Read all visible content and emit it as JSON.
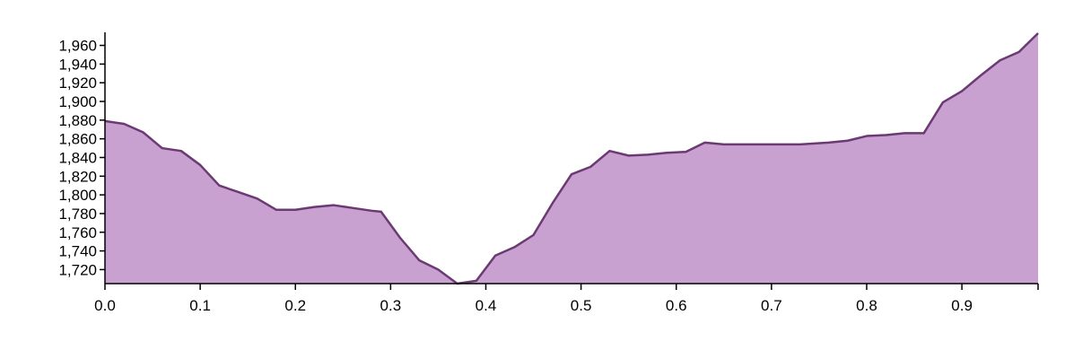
{
  "chart_data": {
    "type": "area",
    "title": "",
    "xlabel": "",
    "ylabel": "",
    "xlim": [
      0,
      0.98
    ],
    "ylim": [
      1705,
      1974
    ],
    "x_ticks": [
      0.0,
      0.1,
      0.2,
      0.3,
      0.4,
      0.5,
      0.6,
      0.7,
      0.8,
      0.9
    ],
    "x_tick_labels": [
      "0.0",
      "0.1",
      "0.2",
      "0.3",
      "0.4",
      "0.5",
      "0.6",
      "0.7",
      "0.8",
      "0.9"
    ],
    "y_ticks": [
      1720,
      1740,
      1760,
      1780,
      1800,
      1820,
      1840,
      1860,
      1880,
      1900,
      1920,
      1940,
      1960
    ],
    "y_tick_labels": [
      "1,720",
      "1,740",
      "1,760",
      "1,780",
      "1,800",
      "1,820",
      "1,840",
      "1,860",
      "1,880",
      "1,900",
      "1,920",
      "1,940",
      "1,960"
    ],
    "grid": false,
    "colors": {
      "fill": "#c9a1d1",
      "stroke": "#6b3a73"
    },
    "series": [
      {
        "x": [
          0.0,
          0.02,
          0.04,
          0.06,
          0.08,
          0.1,
          0.12,
          0.14,
          0.16,
          0.18,
          0.2,
          0.22,
          0.24,
          0.26,
          0.28,
          0.29,
          0.31,
          0.33,
          0.35,
          0.37,
          0.39,
          0.41,
          0.43,
          0.45,
          0.47,
          0.49,
          0.51,
          0.53,
          0.55,
          0.57,
          0.59,
          0.61,
          0.63,
          0.65,
          0.67,
          0.69,
          0.71,
          0.73,
          0.76,
          0.78,
          0.8,
          0.82,
          0.84,
          0.86,
          0.88,
          0.9,
          0.92,
          0.94,
          0.96,
          0.98
        ],
        "values": [
          1879,
          1876,
          1867,
          1850,
          1847,
          1832,
          1810,
          1803,
          1796,
          1784,
          1784,
          1787,
          1789,
          1786,
          1783,
          1782,
          1754,
          1730,
          1720,
          1705,
          1708,
          1735,
          1744,
          1757,
          1791,
          1822,
          1830,
          1847,
          1842,
          1843,
          1845,
          1846,
          1856,
          1854,
          1854,
          1854,
          1854,
          1854,
          1856,
          1858,
          1863,
          1864,
          1866,
          1866,
          1899,
          1911,
          1928,
          1944,
          1953,
          1973
        ]
      }
    ]
  }
}
